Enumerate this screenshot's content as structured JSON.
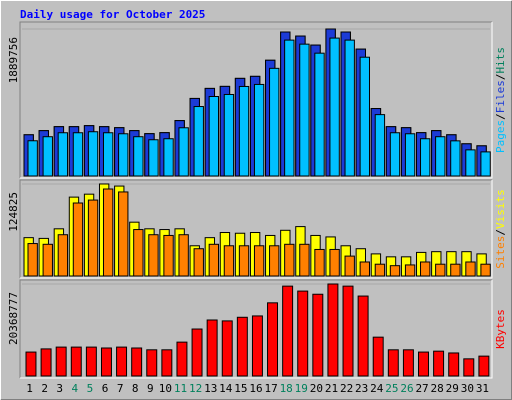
{
  "chart_data": [
    {
      "type": "bar",
      "title": "Daily usage for October 2025",
      "ylim": [
        0,
        1954000
      ],
      "yticks": [
        1889756
      ],
      "legend_separator": "/",
      "series": [
        {
          "name": "Hits",
          "color": "#00805c",
          "values": [
            530000,
            583000,
            634000,
            634000,
            647000,
            634000,
            621000,
            583000,
            544000,
            557000,
            712000,
            997000,
            1126000,
            1152000,
            1255000,
            1281000,
            1488000,
            1851000,
            1799000,
            1683000,
            1889756,
            1851000,
            1631000,
            867000,
            634000,
            621000,
            557000,
            583000,
            530000,
            414000,
            388000
          ]
        },
        {
          "name": "Files",
          "color": "#1c3bd6",
          "values": [
            530000,
            583000,
            634000,
            634000,
            647000,
            634000,
            621000,
            583000,
            544000,
            557000,
            712000,
            997000,
            1126000,
            1152000,
            1255000,
            1281000,
            1488000,
            1851000,
            1799000,
            1683000,
            1889756,
            1851000,
            1631000,
            867000,
            634000,
            621000,
            557000,
            583000,
            530000,
            414000,
            388000
          ]
        },
        {
          "name": "Pages",
          "color": "#00c0ff",
          "values": [
            453000,
            505000,
            556000,
            556000,
            569000,
            556000,
            543000,
            505000,
            466000,
            479000,
            620000,
            893000,
            1022000,
            1048000,
            1151000,
            1177000,
            1384000,
            1747000,
            1695000,
            1579000,
            1773000,
            1747000,
            1527000,
            789000,
            556000,
            543000,
            479000,
            505000,
            452000,
            336000,
            310000
          ]
        }
      ]
    },
    {
      "type": "bar",
      "ylim": [
        0,
        127500
      ],
      "yticks": [
        124825
      ],
      "legend_separator": "/",
      "series": [
        {
          "name": "Visits",
          "color": "#ffff00",
          "values": [
            52000,
            51000,
            64000,
            107000,
            111000,
            124825,
            122000,
            73000,
            64000,
            63000,
            64000,
            41000,
            52000,
            59000,
            58000,
            59000,
            55000,
            62000,
            67000,
            55000,
            53000,
            41000,
            37000,
            30000,
            26000,
            26000,
            32000,
            33000,
            33000,
            33000,
            30000
          ]
        },
        {
          "name": "Sites",
          "color": "#ff8000",
          "values": [
            44000,
            43000,
            56000,
            99000,
            103000,
            118000,
            114000,
            63000,
            56000,
            55000,
            56000,
            37000,
            43000,
            41000,
            41000,
            41000,
            41000,
            43000,
            43000,
            36000,
            36000,
            27000,
            19000,
            16000,
            14000,
            15000,
            19000,
            16000,
            16000,
            19000,
            16000
          ]
        }
      ]
    },
    {
      "type": "bar",
      "ylim": [
        0,
        20811000
      ],
      "yticks": [
        20368777
      ],
      "categories": [
        "1",
        "2",
        "3",
        "4",
        "5",
        "6",
        "7",
        "8",
        "9",
        "10",
        "11",
        "12",
        "13",
        "14",
        "15",
        "16",
        "17",
        "18",
        "19",
        "20",
        "21",
        "22",
        "23",
        "24",
        "25",
        "26",
        "27",
        "28",
        "29",
        "30",
        "31"
      ],
      "category_colors": [
        "#000000",
        "#000000",
        "#000000",
        "#00805c",
        "#00805c",
        "#000000",
        "#000000",
        "#000000",
        "#000000",
        "#000000",
        "#00805c",
        "#00805c",
        "#000000",
        "#000000",
        "#000000",
        "#000000",
        "#000000",
        "#00805c",
        "#00805c",
        "#000000",
        "#000000",
        "#000000",
        "#000000",
        "#000000",
        "#00805c",
        "#00805c",
        "#000000",
        "#000000",
        "#000000",
        "#000000",
        "#000000"
      ],
      "series": [
        {
          "name": "KBytes",
          "color": "#ff0000",
          "values": [
            5300000,
            6000000,
            6400000,
            6400000,
            6400000,
            6200000,
            6400000,
            6200000,
            5800000,
            5800000,
            7500000,
            10400000,
            12400000,
            12200000,
            13000000,
            13300000,
            16200000,
            19900000,
            18800000,
            18100000,
            20368777,
            19900000,
            17700000,
            8600000,
            5800000,
            5800000,
            5300000,
            5500000,
            5100000,
            3800000,
            4400000
          ]
        }
      ]
    }
  ]
}
